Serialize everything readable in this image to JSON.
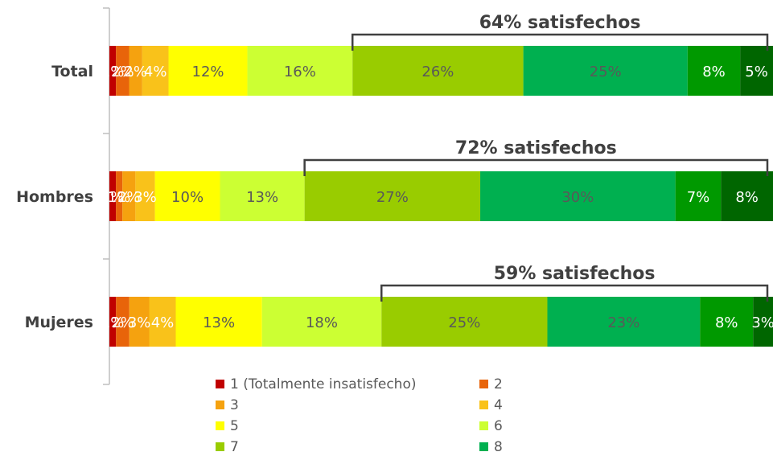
{
  "chart_data": {
    "type": "bar",
    "orientation": "horizontal",
    "stacked": true,
    "percent_stacked": true,
    "categories": [
      "Total",
      "Hombres",
      "Mujeres"
    ],
    "series": [
      {
        "name": "1 (Totalmente insatisfecho)",
        "color": "#c00000",
        "values": [
          1,
          1,
          1
        ],
        "labels": [
          "1%",
          "1%",
          "1%"
        ]
      },
      {
        "name": "2",
        "color": "#e8640a",
        "values": [
          2,
          1,
          2
        ],
        "labels": [
          "2%",
          "1%",
          "2%"
        ]
      },
      {
        "name": "3",
        "color": "#f5a20f",
        "values": [
          2,
          2,
          3
        ],
        "labels": [
          "2%",
          "2%",
          "3%"
        ]
      },
      {
        "name": "4",
        "color": "#f9c21a",
        "values": [
          4,
          3,
          4
        ],
        "labels": [
          "4%",
          "3%",
          "4%"
        ]
      },
      {
        "name": "5",
        "color": "#ffff00",
        "values": [
          12,
          10,
          13
        ],
        "labels": [
          "12%",
          "10%",
          "13%"
        ]
      },
      {
        "name": "6",
        "color": "#ccff33",
        "values": [
          16,
          13,
          18
        ],
        "labels": [
          "16%",
          "13%",
          "18%"
        ]
      },
      {
        "name": "7",
        "color": "#99cc00",
        "values": [
          26,
          27,
          25
        ],
        "labels": [
          "26%",
          "27%",
          "25%"
        ]
      },
      {
        "name": "8",
        "color": "#00b050",
        "values": [
          25,
          30,
          23
        ],
        "labels": [
          "25%",
          "30%",
          "23%"
        ]
      },
      {
        "name": "",
        "color": "#009900",
        "values": [
          8,
          7,
          8
        ],
        "labels": [
          "8%",
          "7%",
          "8%"
        ]
      },
      {
        "name": "",
        "color": "#006600",
        "values": [
          5,
          8,
          3
        ],
        "labels": [
          "5%",
          "8%",
          "3%"
        ]
      }
    ],
    "annotations": [
      {
        "category": "Total",
        "text": "64% satisfechos",
        "from_series": 6
      },
      {
        "category": "Hombres",
        "text": "72% satisfechos",
        "from_series": 6
      },
      {
        "category": "Mujeres",
        "text": "59% satisfechos",
        "from_series": 6
      }
    ],
    "legend": {
      "placement": "bottom",
      "columns": 2,
      "entries": [
        "1 (Totalmente insatisfecho)",
        "2",
        "3",
        "4",
        "5",
        "6",
        "7",
        "8"
      ]
    },
    "title": "",
    "xlabel": "",
    "ylabel": "",
    "xlim": [
      0,
      100
    ],
    "grid": false
  }
}
